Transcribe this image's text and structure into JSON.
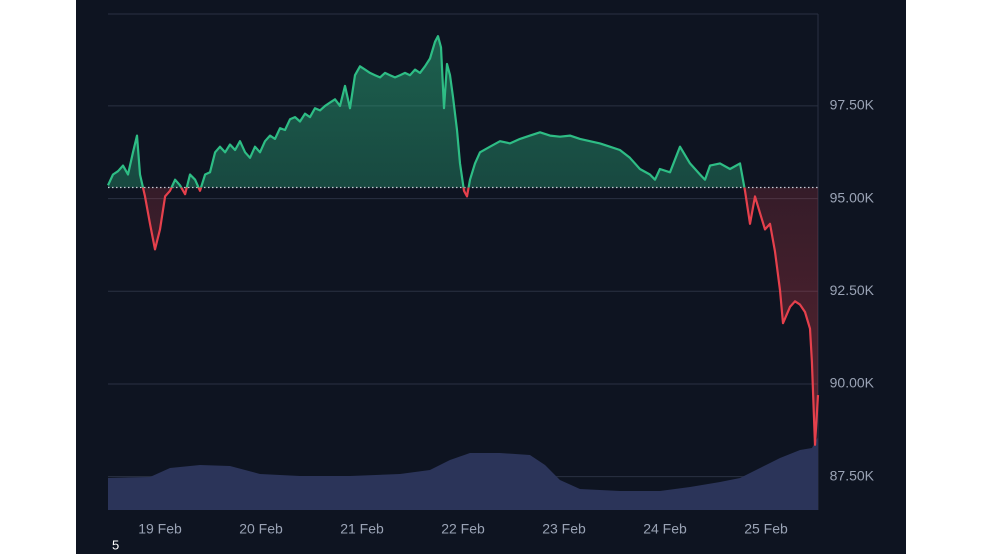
{
  "chart_data": {
    "type": "line",
    "x": [
      18.485,
      18.535,
      18.584,
      18.634,
      18.683,
      18.733,
      18.772,
      18.802,
      18.851,
      18.901,
      18.95,
      19.0,
      19.05,
      19.099,
      19.149,
      19.198,
      19.248,
      19.297,
      19.347,
      19.396,
      19.446,
      19.495,
      19.545,
      19.594,
      19.644,
      19.693,
      19.743,
      19.792,
      19.842,
      19.891,
      19.941,
      19.99,
      20.04,
      20.089,
      20.139,
      20.188,
      20.238,
      20.287,
      20.337,
      20.386,
      20.436,
      20.485,
      20.535,
      20.584,
      20.634,
      20.683,
      20.733,
      20.782,
      20.832,
      20.881,
      20.931,
      20.98,
      21.03,
      21.079,
      21.129,
      21.178,
      21.228,
      21.277,
      21.327,
      21.376,
      21.426,
      21.475,
      21.525,
      21.574,
      21.624,
      21.673,
      21.723,
      21.752,
      21.782,
      21.812,
      21.842,
      21.871,
      21.901,
      21.941,
      21.97,
      22.01,
      22.04,
      22.069,
      22.119,
      22.168,
      22.267,
      22.366,
      22.465,
      22.564,
      22.663,
      22.762,
      22.861,
      22.96,
      23.059,
      23.158,
      23.257,
      23.356,
      23.455,
      23.554,
      23.653,
      23.752,
      23.851,
      23.901,
      23.95,
      24.05,
      24.149,
      24.248,
      24.347,
      24.396,
      24.446,
      24.545,
      24.644,
      24.743,
      24.792,
      24.842,
      24.891,
      24.941,
      24.99,
      25.04,
      25.089,
      25.139,
      25.168,
      25.238,
      25.287,
      25.337,
      25.386,
      25.436,
      25.455,
      25.485,
      25.515
    ],
    "series": [
      {
        "up_color": "#2ebd85",
        "down_color": "#e5404c",
        "values": [
          95360,
          95650,
          95740,
          95890,
          95650,
          96250,
          96700,
          95650,
          95060,
          94320,
          93630,
          94170,
          95060,
          95210,
          95510,
          95360,
          95120,
          95650,
          95510,
          95210,
          95650,
          95710,
          96250,
          96400,
          96250,
          96460,
          96310,
          96550,
          96250,
          96100,
          96400,
          96250,
          96550,
          96700,
          96610,
          96900,
          96850,
          97140,
          97200,
          97080,
          97290,
          97200,
          97440,
          97380,
          97500,
          97590,
          97680,
          97500,
          98040,
          97440,
          98330,
          98570,
          98480,
          98390,
          98330,
          98270,
          98390,
          98330,
          98270,
          98330,
          98390,
          98330,
          98480,
          98390,
          98570,
          98780,
          99230,
          99380,
          99080,
          97440,
          98630,
          98330,
          97740,
          96850,
          95950,
          95210,
          95060,
          95510,
          95950,
          96250,
          96400,
          96550,
          96490,
          96610,
          96700,
          96790,
          96700,
          96670,
          96700,
          96610,
          96550,
          96490,
          96400,
          96310,
          96100,
          95800,
          95650,
          95510,
          95800,
          95710,
          96400,
          95950,
          95650,
          95510,
          95890,
          95950,
          95800,
          95950,
          95210,
          94320,
          95060,
          94610,
          94170,
          94320,
          93570,
          92530,
          91640,
          92080,
          92230,
          92140,
          91940,
          91490,
          90600,
          88360,
          89700
        ]
      }
    ],
    "baseline": 95300,
    "volume": {
      "color": "#2b3459",
      "x": [
        18.485,
        18.901,
        19.099,
        19.396,
        19.693,
        19.99,
        20.386,
        20.881,
        21.376,
        21.673,
        21.871,
        22.069,
        22.366,
        22.663,
        22.812,
        22.96,
        23.158,
        23.554,
        23.95,
        24.248,
        24.545,
        24.743,
        24.941,
        25.139,
        25.337,
        25.455,
        25.515
      ],
      "values": [
        32,
        33,
        42,
        45,
        44,
        36,
        34,
        34,
        36,
        40,
        50,
        57,
        57,
        55,
        45,
        30,
        21,
        19,
        19,
        23,
        28,
        32,
        42,
        52,
        60,
        62,
        73
      ]
    },
    "xlim": [
      18.485,
      25.515
    ],
    "xticks": [
      {
        "value": 19,
        "label": "19 Feb"
      },
      {
        "value": 20,
        "label": "20 Feb"
      },
      {
        "value": 21,
        "label": "21 Feb"
      },
      {
        "value": 22,
        "label": "22 Feb"
      },
      {
        "value": 23,
        "label": "23 Feb"
      },
      {
        "value": 24,
        "label": "24 Feb"
      },
      {
        "value": 25,
        "label": "25 Feb"
      }
    ],
    "ylim": [
      86600,
      99980
    ],
    "yticks": [
      {
        "value": 87500,
        "label": "87.50K"
      },
      {
        "value": 90000,
        "label": "90.00K"
      },
      {
        "value": 92500,
        "label": "92.50K"
      },
      {
        "value": 95000,
        "label": "95.00K"
      },
      {
        "value": 97500,
        "label": "97.50K"
      }
    ],
    "grid": true,
    "footnote": "5"
  }
}
